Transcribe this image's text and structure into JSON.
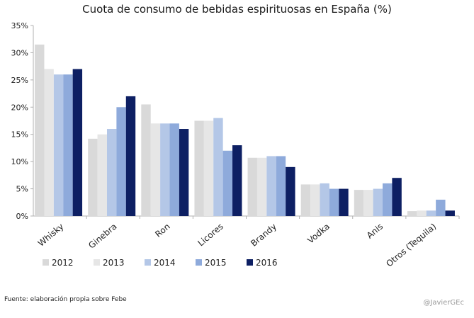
{
  "title": "Cuota de consumo de bebidas espirituosas en España (%)",
  "source": "Fuente: elaboración propia sobre Febe",
  "credit": "@JavierGEc",
  "chart_data": {
    "type": "bar",
    "title": "Cuota de consumo de bebidas espirituosas en España (%)",
    "xlabel": "",
    "ylabel": "",
    "ylim": [
      0,
      35
    ],
    "yticks": [
      "0%",
      "5%",
      "10%",
      "15%",
      "20%",
      "25%",
      "30%",
      "35%"
    ],
    "grid": false,
    "legend_position": "bottom-left",
    "categories": [
      "Whisky",
      "Ginebra",
      "Ron",
      "Licores",
      "Brandy",
      "Vodka",
      "Anis",
      "Otros (Tequila)"
    ],
    "series": [
      {
        "name": "2012",
        "color": "#d9d9d9",
        "values": [
          31.5,
          14.2,
          20.5,
          17.5,
          10.7,
          5.8,
          4.8,
          0.9
        ]
      },
      {
        "name": "2013",
        "color": "#e6e6e6",
        "values": [
          27.0,
          15.0,
          17.0,
          17.5,
          10.7,
          5.8,
          4.8,
          1.0
        ]
      },
      {
        "name": "2014",
        "color": "#b4c7e7",
        "values": [
          26.0,
          16.0,
          17.0,
          18.0,
          11.0,
          6.0,
          5.0,
          1.0
        ]
      },
      {
        "name": "2015",
        "color": "#8eaadb",
        "values": [
          26.0,
          20.0,
          17.0,
          12.0,
          11.0,
          5.0,
          6.0,
          3.0
        ]
      },
      {
        "name": "2016",
        "color": "#0d1f63",
        "values": [
          27.0,
          22.0,
          16.0,
          13.0,
          9.0,
          5.0,
          7.0,
          1.0
        ]
      }
    ]
  }
}
